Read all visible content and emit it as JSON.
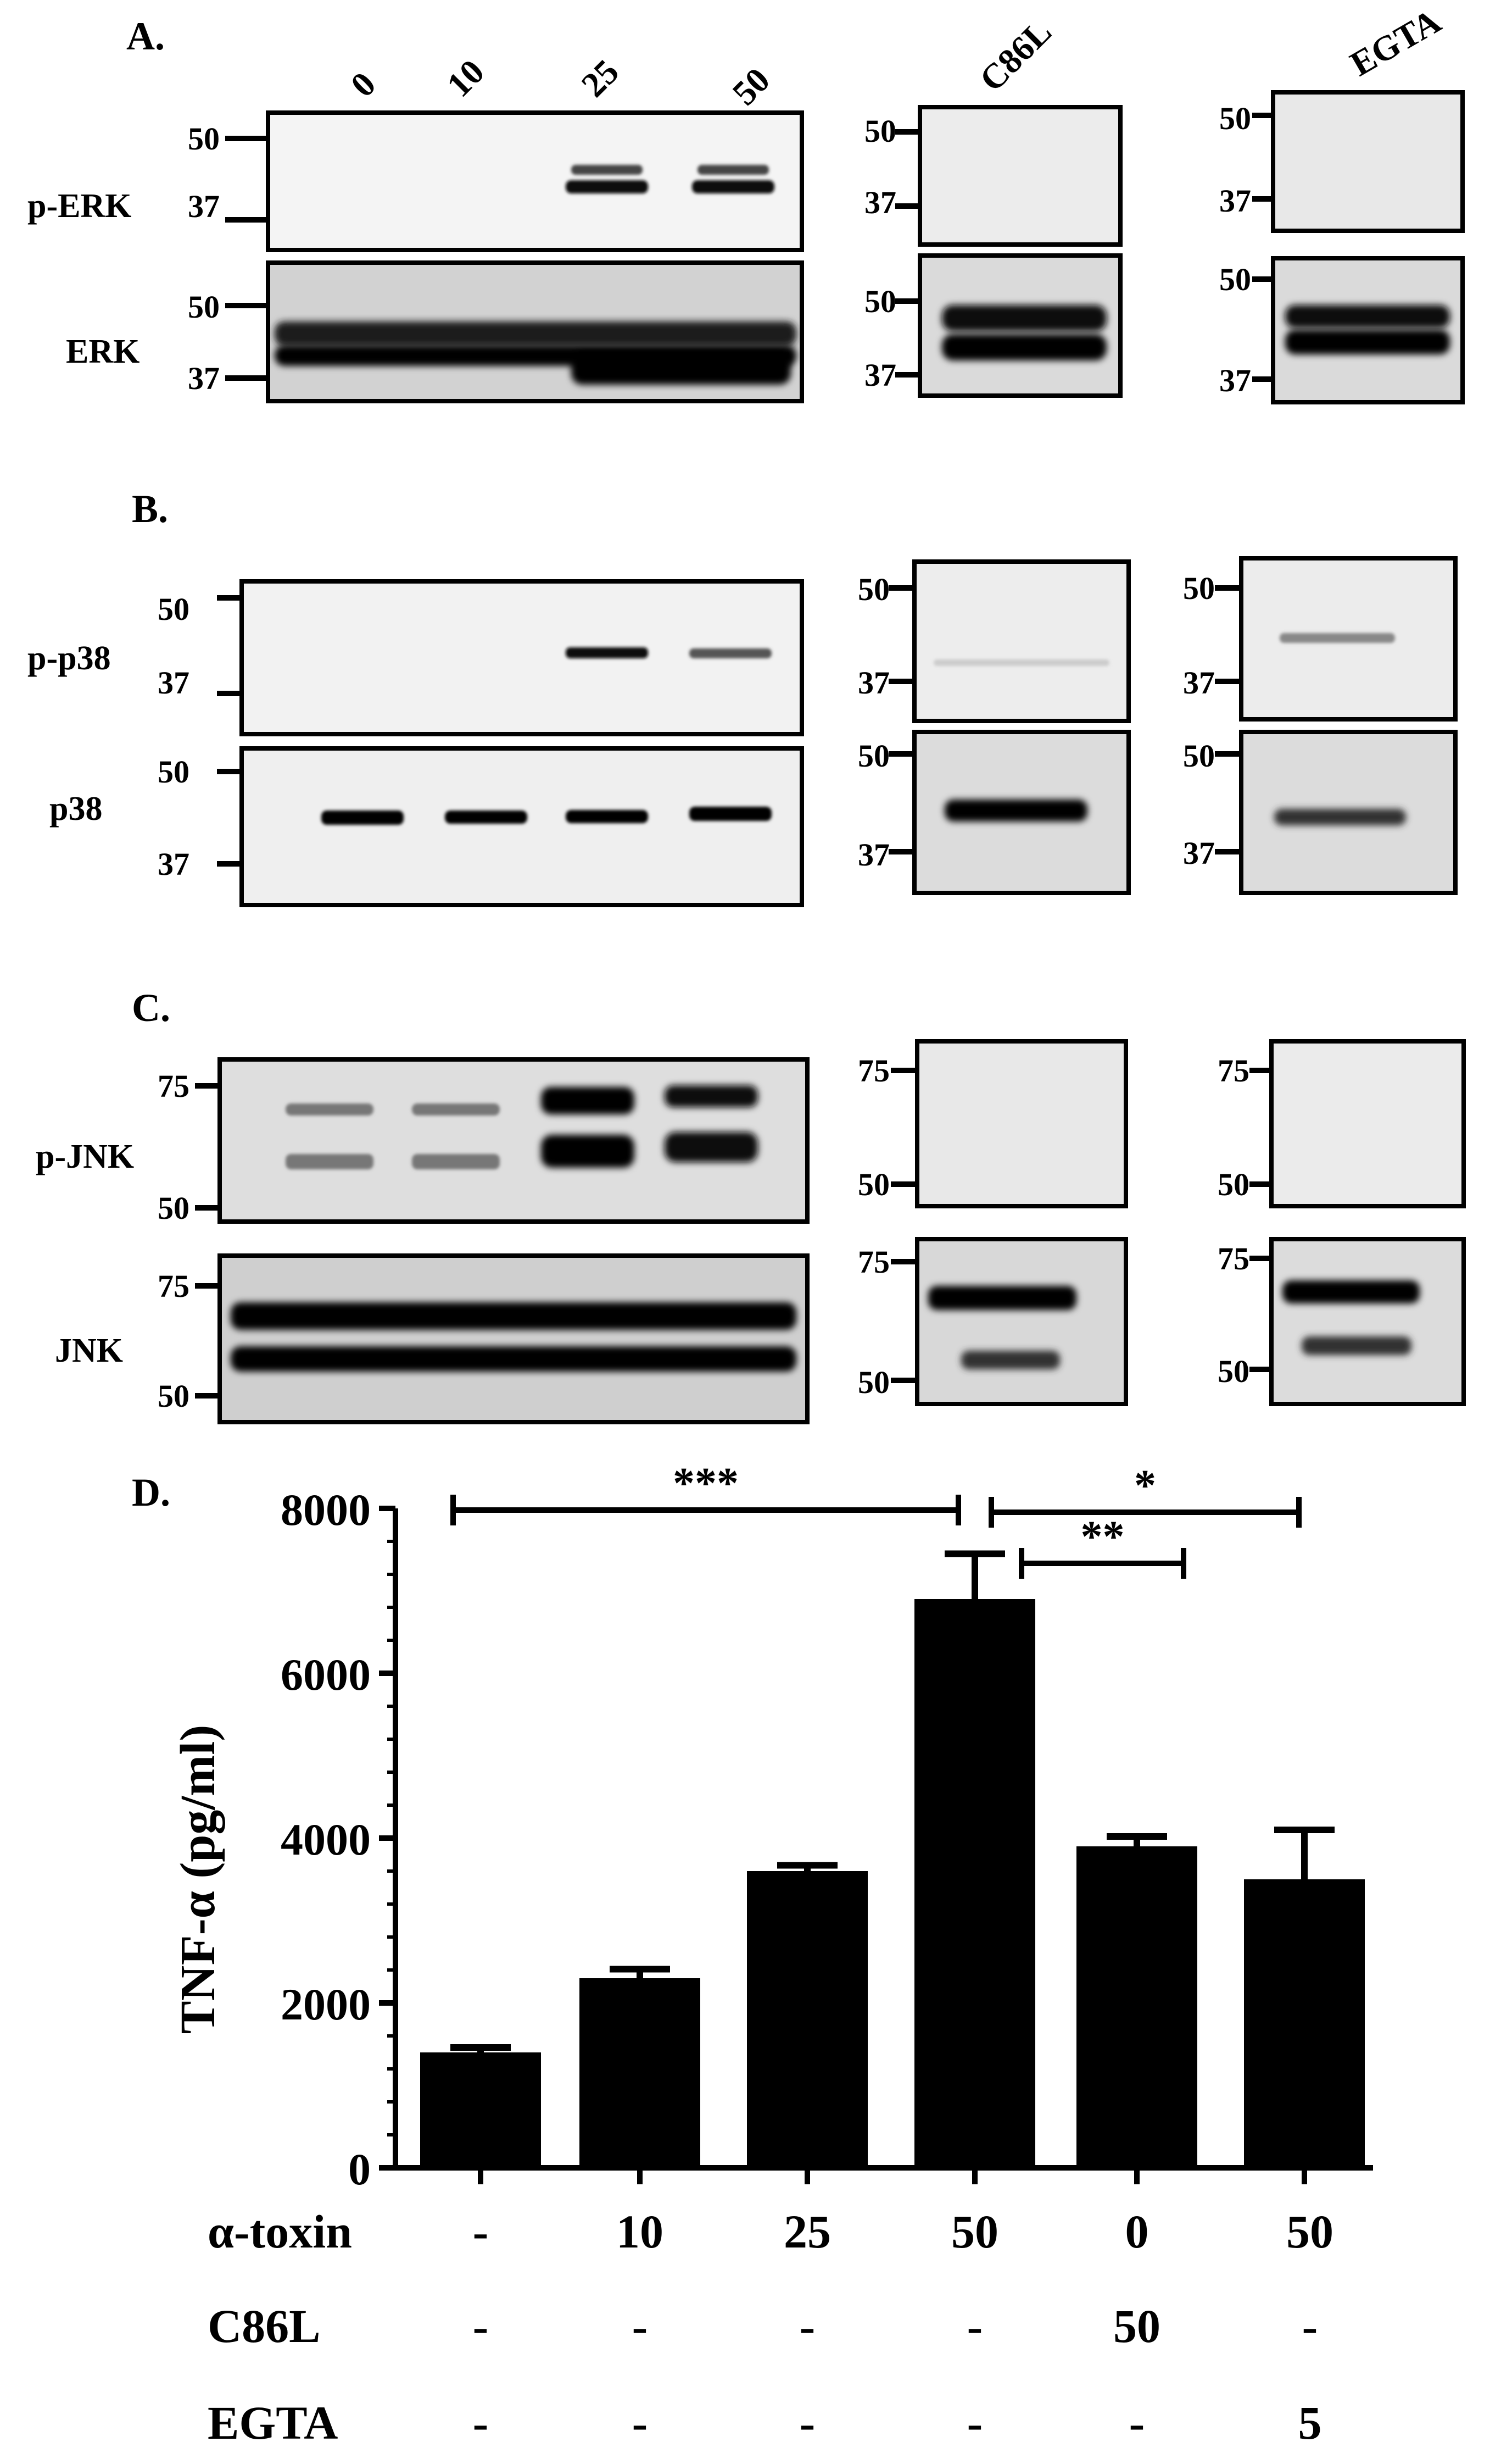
{
  "panels": {
    "A": {
      "letter": "A.",
      "lanes": [
        "0",
        "10",
        "25",
        "50"
      ],
      "lane_C86L": "C86L",
      "lane_EGTA": "EGTA",
      "rows": [
        {
          "label": "p-ERK",
          "markers": [
            "50",
            "37"
          ]
        },
        {
          "label": "ERK",
          "markers": [
            "50",
            "37"
          ]
        }
      ]
    },
    "B": {
      "letter": "B.",
      "rows": [
        {
          "label": "p-p38",
          "markers": [
            "50",
            "37"
          ]
        },
        {
          "label": "p38",
          "markers": [
            "50",
            "37"
          ]
        }
      ]
    },
    "C": {
      "letter": "C.",
      "rows": [
        {
          "label": "p-JNK",
          "markers": [
            "75",
            "50"
          ]
        },
        {
          "label": "JNK",
          "markers": [
            "75",
            "50"
          ]
        }
      ]
    },
    "D": {
      "letter": "D."
    }
  },
  "chart_data": {
    "type": "bar",
    "ylabel": "TNF-α (pg/ml)",
    "ylim": [
      0,
      8000
    ],
    "yticks": [
      "0",
      "2000",
      "4000",
      "6000",
      "8000"
    ],
    "values": [
      1400,
      2300,
      3600,
      6900,
      3900,
      3500
    ],
    "errors": [
      60,
      110,
      70,
      550,
      120,
      600
    ],
    "conditions": [
      {
        "label": "α-toxin",
        "values": [
          "-",
          "10",
          "25",
          "50",
          "0",
          "50"
        ]
      },
      {
        "label": "C86L",
        "values": [
          "-",
          "-",
          "-",
          "-",
          "50",
          "-"
        ]
      },
      {
        "label": "EGTA",
        "values": [
          "-",
          "-",
          "-",
          "-",
          "-",
          "5"
        ]
      }
    ],
    "significance": [
      {
        "from": 0,
        "to": 3,
        "label": "***"
      },
      {
        "from": 3,
        "to": 5,
        "label": "*"
      },
      {
        "from": 3,
        "to": 4,
        "label": "**"
      }
    ]
  }
}
